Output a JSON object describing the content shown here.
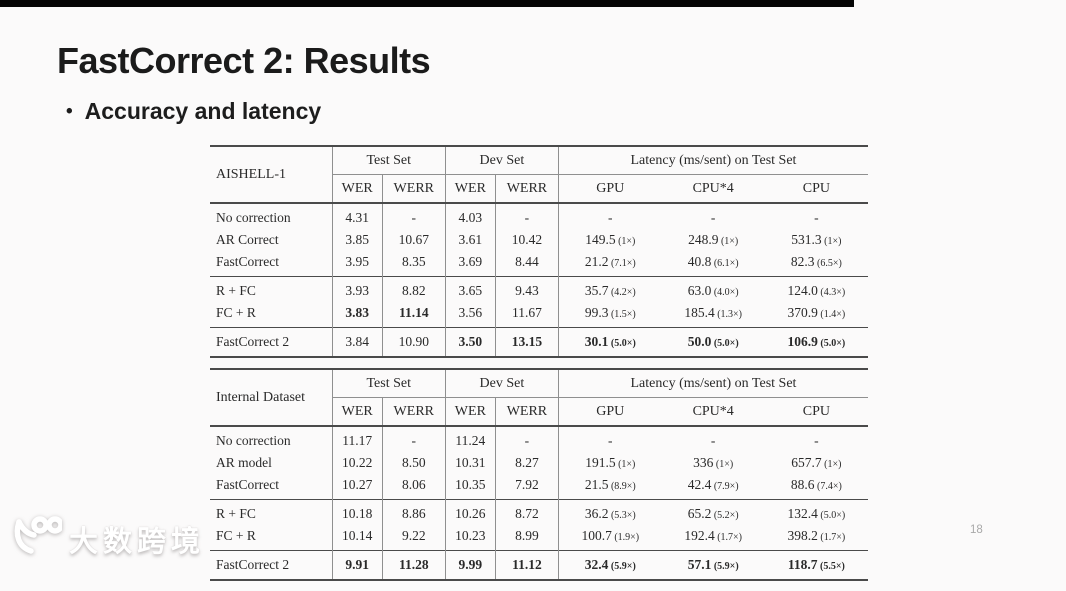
{
  "slide": {
    "title": "FastCorrect 2: Results",
    "bullet_marker": "•",
    "bullet": "Accuracy and latency",
    "page_number": "18",
    "watermark": {
      "logo": "k100-smiley",
      "text": "大数跨境"
    }
  },
  "colors": {
    "top_bar": "#050505",
    "rule_heavy": "#4a4a4a",
    "rule_light": "#8f8f8f",
    "table_text": "#2a2a2a",
    "page_number": "#a9a9a9"
  },
  "tables": [
    {
      "id": "results-table-aishell",
      "dataset_label": "AISHELL-1",
      "group_headers": [
        "Test Set",
        "Dev Set",
        "Latency (ms/sent) on Test Set"
      ],
      "col_headers": [
        "WER",
        "WERR",
        "WER",
        "WERR",
        "GPU",
        "CPU*4",
        "CPU"
      ],
      "sections": [
        {
          "rows": [
            {
              "label": "No correction",
              "cells": [
                {
                  "t": "4.31"
                },
                {
                  "t": "-"
                },
                {
                  "t": "4.03"
                },
                {
                  "t": "-"
                },
                {
                  "t": "-"
                },
                {
                  "t": "-"
                },
                {
                  "t": "-"
                }
              ]
            },
            {
              "label": "AR Correct",
              "cells": [
                {
                  "t": "3.85"
                },
                {
                  "t": "10.67"
                },
                {
                  "t": "3.61"
                },
                {
                  "t": "10.42"
                },
                {
                  "t": "149.5",
                  "x": "(1×)"
                },
                {
                  "t": "248.9",
                  "x": "(1×)"
                },
                {
                  "t": "531.3",
                  "x": "(1×)"
                }
              ]
            },
            {
              "label": "FastCorrect",
              "cells": [
                {
                  "t": "3.95"
                },
                {
                  "t": "8.35"
                },
                {
                  "t": "3.69"
                },
                {
                  "t": "8.44"
                },
                {
                  "t": "21.2",
                  "x": "(7.1×)"
                },
                {
                  "t": "40.8",
                  "x": "(6.1×)"
                },
                {
                  "t": "82.3",
                  "x": "(6.5×)"
                }
              ]
            }
          ]
        },
        {
          "rows": [
            {
              "label": "R + FC",
              "cells": [
                {
                  "t": "3.93"
                },
                {
                  "t": "8.82"
                },
                {
                  "t": "3.65"
                },
                {
                  "t": "9.43"
                },
                {
                  "t": "35.7",
                  "x": "(4.2×)"
                },
                {
                  "t": "63.0",
                  "x": "(4.0×)"
                },
                {
                  "t": "124.0",
                  "x": "(4.3×)"
                }
              ]
            },
            {
              "label": "FC + R",
              "cells": [
                {
                  "t": "3.83",
                  "b": true
                },
                {
                  "t": "11.14",
                  "b": true
                },
                {
                  "t": "3.56"
                },
                {
                  "t": "11.67"
                },
                {
                  "t": "99.3",
                  "x": "(1.5×)"
                },
                {
                  "t": "185.4",
                  "x": "(1.3×)"
                },
                {
                  "t": "370.9",
                  "x": "(1.4×)"
                }
              ]
            }
          ]
        },
        {
          "rows": [
            {
              "label": "FastCorrect 2",
              "cells": [
                {
                  "t": "3.84"
                },
                {
                  "t": "10.90"
                },
                {
                  "t": "3.50",
                  "b": true
                },
                {
                  "t": "13.15",
                  "b": true
                },
                {
                  "t": "30.1",
                  "x": "(5.0×)",
                  "b": true
                },
                {
                  "t": "50.0",
                  "x": "(5.0×)",
                  "b": true
                },
                {
                  "t": "106.9",
                  "x": "(5.0×)",
                  "b": true
                }
              ]
            }
          ]
        }
      ]
    },
    {
      "id": "results-table-internal",
      "dataset_label": "Internal Dataset",
      "group_headers": [
        "Test Set",
        "Dev Set",
        "Latency (ms/sent) on Test Set"
      ],
      "col_headers": [
        "WER",
        "WERR",
        "WER",
        "WERR",
        "GPU",
        "CPU*4",
        "CPU"
      ],
      "sections": [
        {
          "rows": [
            {
              "label": "No correction",
              "cells": [
                {
                  "t": "11.17"
                },
                {
                  "t": "-"
                },
                {
                  "t": "11.24"
                },
                {
                  "t": "-"
                },
                {
                  "t": "-"
                },
                {
                  "t": "-"
                },
                {
                  "t": "-"
                }
              ]
            },
            {
              "label": "AR model",
              "cells": [
                {
                  "t": "10.22"
                },
                {
                  "t": "8.50"
                },
                {
                  "t": "10.31"
                },
                {
                  "t": "8.27"
                },
                {
                  "t": "191.5",
                  "x": "(1×)"
                },
                {
                  "t": "336",
                  "x": "(1×)"
                },
                {
                  "t": "657.7",
                  "x": "(1×)"
                }
              ]
            },
            {
              "label": "FastCorrect",
              "cells": [
                {
                  "t": "10.27"
                },
                {
                  "t": "8.06"
                },
                {
                  "t": "10.35"
                },
                {
                  "t": "7.92"
                },
                {
                  "t": "21.5",
                  "x": "(8.9×)"
                },
                {
                  "t": "42.4",
                  "x": "(7.9×)"
                },
                {
                  "t": "88.6",
                  "x": "(7.4×)"
                }
              ]
            }
          ]
        },
        {
          "rows": [
            {
              "label": "R + FC",
              "cells": [
                {
                  "t": "10.18"
                },
                {
                  "t": "8.86"
                },
                {
                  "t": "10.26"
                },
                {
                  "t": "8.72"
                },
                {
                  "t": "36.2",
                  "x": "(5.3×)"
                },
                {
                  "t": "65.2",
                  "x": "(5.2×)"
                },
                {
                  "t": "132.4",
                  "x": "(5.0×)"
                }
              ]
            },
            {
              "label": "FC + R",
              "cells": [
                {
                  "t": "10.14"
                },
                {
                  "t": "9.22"
                },
                {
                  "t": "10.23"
                },
                {
                  "t": "8.99"
                },
                {
                  "t": "100.7",
                  "x": "(1.9×)"
                },
                {
                  "t": "192.4",
                  "x": "(1.7×)"
                },
                {
                  "t": "398.2",
                  "x": "(1.7×)"
                }
              ]
            }
          ]
        },
        {
          "rows": [
            {
              "label": "FastCorrect 2",
              "cells": [
                {
                  "t": "9.91",
                  "b": true
                },
                {
                  "t": "11.28",
                  "b": true
                },
                {
                  "t": "9.99",
                  "b": true
                },
                {
                  "t": "11.12",
                  "b": true
                },
                {
                  "t": "32.4",
                  "x": "(5.9×)",
                  "b": true
                },
                {
                  "t": "57.1",
                  "x": "(5.9×)",
                  "b": true
                },
                {
                  "t": "118.7",
                  "x": "(5.5×)",
                  "b": true
                }
              ]
            }
          ]
        }
      ]
    }
  ]
}
